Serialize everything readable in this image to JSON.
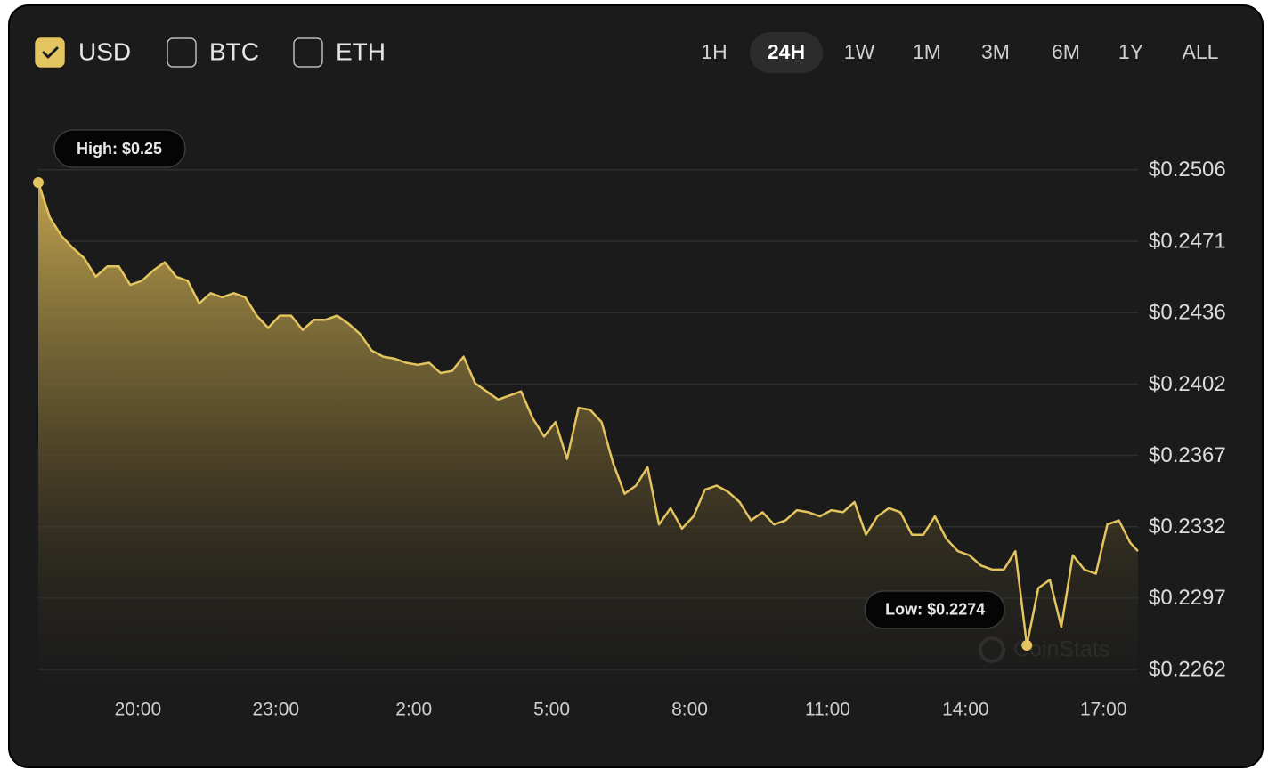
{
  "chart_data": {
    "type": "line",
    "currencies": [
      {
        "label": "USD",
        "checked": true
      },
      {
        "label": "BTC",
        "checked": false
      },
      {
        "label": "ETH",
        "checked": false
      }
    ],
    "ranges": [
      {
        "label": "1H",
        "selected": false
      },
      {
        "label": "24H",
        "selected": true
      },
      {
        "label": "1W",
        "selected": false
      },
      {
        "label": "1M",
        "selected": false
      },
      {
        "label": "3M",
        "selected": false
      },
      {
        "label": "6M",
        "selected": false
      },
      {
        "label": "1Y",
        "selected": false
      },
      {
        "label": "ALL",
        "selected": false
      }
    ],
    "annotations": {
      "high": "High: $0.25",
      "low": "Low: $0.2274"
    },
    "watermark": "CoinStats",
    "color": "#e3c45e",
    "x": [
      "17:50",
      "18:05",
      "18:20",
      "18:35",
      "18:50",
      "19:05",
      "19:20",
      "19:35",
      "19:50",
      "20:05",
      "20:20",
      "20:35",
      "20:50",
      "21:05",
      "21:20",
      "21:35",
      "21:50",
      "22:05",
      "22:20",
      "22:35",
      "22:50",
      "23:05",
      "23:20",
      "23:35",
      "23:50",
      "0:05",
      "0:20",
      "0:35",
      "0:50",
      "1:05",
      "1:20",
      "1:35",
      "1:50",
      "2:05",
      "2:20",
      "2:35",
      "2:50",
      "3:05",
      "3:20",
      "3:35",
      "3:50",
      "4:05",
      "4:20",
      "4:35",
      "4:50",
      "5:05",
      "5:20",
      "5:35",
      "5:50",
      "6:05",
      "6:20",
      "6:35",
      "6:50",
      "7:05",
      "7:20",
      "7:35",
      "7:50",
      "8:05",
      "8:20",
      "8:35",
      "8:50",
      "9:05",
      "9:20",
      "9:35",
      "9:50",
      "10:05",
      "10:20",
      "10:35",
      "10:50",
      "11:05",
      "11:20",
      "11:35",
      "11:50",
      "12:05",
      "12:20",
      "12:35",
      "12:50",
      "13:05",
      "13:20",
      "13:35",
      "13:50",
      "14:05",
      "14:20",
      "14:35",
      "14:50",
      "15:05",
      "15:20",
      "15:35",
      "15:50",
      "16:05",
      "16:20",
      "16:35",
      "16:50",
      "17:05",
      "17:20",
      "17:35",
      "17:45"
    ],
    "values": [
      0.25,
      0.2483,
      0.2474,
      0.2468,
      0.2463,
      0.2454,
      0.2459,
      0.2459,
      0.245,
      0.2452,
      0.2457,
      0.2461,
      0.2454,
      0.2452,
      0.2441,
      0.2446,
      0.2444,
      0.2446,
      0.2444,
      0.2435,
      0.2429,
      0.2435,
      0.2435,
      0.2428,
      0.2433,
      0.2433,
      0.2435,
      0.2431,
      0.2426,
      0.2418,
      0.2415,
      0.2414,
      0.2412,
      0.2411,
      0.2412,
      0.2407,
      0.2408,
      0.2415,
      0.2402,
      0.2398,
      0.2394,
      0.2396,
      0.2398,
      0.2385,
      0.2376,
      0.2383,
      0.2365,
      0.239,
      0.2389,
      0.2383,
      0.2363,
      0.2348,
      0.2352,
      0.2361,
      0.2333,
      0.2341,
      0.2331,
      0.2337,
      0.235,
      0.2352,
      0.2349,
      0.2344,
      0.2335,
      0.2339,
      0.2333,
      0.2335,
      0.234,
      0.2339,
      0.2337,
      0.234,
      0.2339,
      0.2344,
      0.2328,
      0.2337,
      0.2341,
      0.2339,
      0.2328,
      0.2328,
      0.2337,
      0.2326,
      0.232,
      0.2318,
      0.2313,
      0.2311,
      0.2311,
      0.232,
      0.2274,
      0.2302,
      0.2306,
      0.2283,
      0.2318,
      0.2311,
      0.2309,
      0.2333,
      0.2335,
      0.2324,
      0.232
    ],
    "xlim": [
      "17:50",
      "17:45"
    ],
    "xticks": [
      "20:00",
      "23:00",
      "2:00",
      "5:00",
      "8:00",
      "11:00",
      "14:00",
      "17:00"
    ],
    "ylim": [
      0.2254,
      0.252
    ],
    "yticks": [
      {
        "value": 0.22622,
        "label": "$0.2262"
      },
      {
        "value": 0.22971,
        "label": "$0.2297"
      },
      {
        "value": 0.23319,
        "label": "$0.2332"
      },
      {
        "value": 0.23668,
        "label": "$0.2367"
      },
      {
        "value": 0.24016,
        "label": "$0.2402"
      },
      {
        "value": 0.24364,
        "label": "$0.2436"
      },
      {
        "value": 0.24713,
        "label": "$0.2471"
      },
      {
        "value": 0.25062,
        "label": "$0.2506"
      }
    ],
    "grid": true
  }
}
